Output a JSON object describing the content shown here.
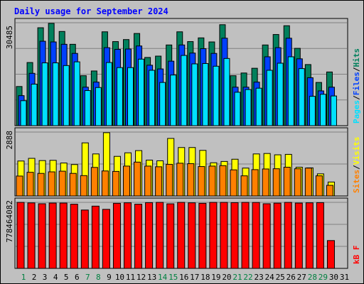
{
  "title": "Daily usage for September 2024",
  "colors": {
    "background": "#c0c0c0",
    "title": "#0000ff",
    "hits": "#00805c",
    "files": "#0040ff",
    "pages": "#00e0ff",
    "visits": "#ffff00",
    "sites": "#ff8000",
    "kbytes": "#ff0000",
    "weekend_label": "#008040",
    "weekday_label": "#000000"
  },
  "chart_data": [
    {
      "type": "bar",
      "title": "",
      "ylabel_max": "30485",
      "legend": [
        {
          "label": "Hits",
          "color_key": "hits"
        },
        {
          "label": "Files",
          "color_key": "files"
        },
        {
          "label": "Pages",
          "color_key": "pages"
        }
      ],
      "separator": "/",
      "categories": [
        "1",
        "2",
        "3",
        "4",
        "5",
        "6",
        "7",
        "8",
        "9",
        "10",
        "11",
        "12",
        "13",
        "14",
        "15",
        "16",
        "17",
        "18",
        "19",
        "20",
        "21",
        "22",
        "23",
        "24",
        "25",
        "26",
        "27",
        "28",
        "29",
        "30",
        "31"
      ],
      "weekend_days": [
        "1",
        "7",
        "8",
        "14",
        "15",
        "21",
        "22",
        "28",
        "29"
      ],
      "ylim": [
        0,
        30485
      ],
      "series": [
        {
          "name": "Hits",
          "values": [
            11600,
            18700,
            29000,
            30300,
            27900,
            24100,
            14800,
            16200,
            27800,
            24900,
            25500,
            27300,
            20200,
            20600,
            23900,
            27800,
            24900,
            26000,
            24800,
            29900,
            14800,
            15600,
            17000,
            23900,
            27000,
            29600,
            22900,
            18100,
            12800,
            15900,
            0
          ]
        },
        {
          "name": "Files",
          "values": [
            8900,
            15500,
            25000,
            24800,
            24100,
            21400,
            11400,
            12900,
            23100,
            22600,
            22700,
            23600,
            17900,
            16800,
            19100,
            23900,
            21500,
            22800,
            21400,
            25900,
            11400,
            11400,
            12900,
            20400,
            23100,
            25900,
            19800,
            14200,
            10300,
            11400,
            0
          ]
        },
        {
          "name": "Pages",
          "values": [
            7400,
            12300,
            18600,
            18600,
            17800,
            18900,
            10400,
            11300,
            18700,
            17200,
            17200,
            19700,
            16400,
            12800,
            15000,
            20800,
            18300,
            18400,
            17600,
            19900,
            9900,
            10700,
            11100,
            16400,
            18500,
            20400,
            16900,
            8700,
            9300,
            8800,
            0
          ]
        }
      ]
    },
    {
      "type": "bar",
      "title": "",
      "ylabel_max": "2888",
      "legend": [
        {
          "label": "Visits",
          "color_key": "visits"
        },
        {
          "label": "Sites",
          "color_key": "sites"
        }
      ],
      "separator": "/",
      "categories": [
        "1",
        "2",
        "3",
        "4",
        "5",
        "6",
        "7",
        "8",
        "9",
        "10",
        "11",
        "12",
        "13",
        "14",
        "15",
        "16",
        "17",
        "18",
        "19",
        "20",
        "21",
        "22",
        "23",
        "24",
        "25",
        "26",
        "27",
        "28",
        "29",
        "30",
        "31"
      ],
      "ylim": [
        0,
        2888
      ],
      "series": [
        {
          "name": "Visits",
          "values": [
            1580,
            1700,
            1600,
            1610,
            1490,
            1420,
            2400,
            1900,
            2860,
            1790,
            1950,
            2050,
            1620,
            1590,
            2600,
            2190,
            2190,
            2060,
            1500,
            1560,
            1660,
            1260,
            1900,
            1920,
            1860,
            1880,
            1300,
            1270,
            1000,
            630,
            0
          ]
        },
        {
          "name": "Sites",
          "values": [
            900,
            1070,
            1020,
            1090,
            1120,
            1020,
            920,
            1290,
            1130,
            1110,
            1350,
            1530,
            1350,
            1320,
            1430,
            1480,
            1460,
            1330,
            1350,
            1370,
            1180,
            910,
            1190,
            1220,
            1230,
            1300,
            1230,
            1260,
            910,
            480,
            0
          ]
        }
      ]
    },
    {
      "type": "bar",
      "title": "",
      "ylabel_max": "778464082",
      "legend": [
        {
          "label": "KBytes",
          "color_key": "kbytes"
        }
      ],
      "legend_text": "kB F",
      "categories": [
        "1",
        "2",
        "3",
        "4",
        "5",
        "6",
        "7",
        "8",
        "9",
        "10",
        "11",
        "12",
        "13",
        "14",
        "15",
        "16",
        "17",
        "18",
        "19",
        "20",
        "21",
        "22",
        "23",
        "24",
        "25",
        "26",
        "27",
        "28",
        "29",
        "30",
        "31"
      ],
      "ylim": [
        0,
        778464082
      ],
      "series": [
        {
          "name": "KBytes",
          "values": [
            778000000,
            772000000,
            762000000,
            770000000,
            770000000,
            757000000,
            688000000,
            734000000,
            696000000,
            767000000,
            773000000,
            757000000,
            775000000,
            778000000,
            761000000,
            778000000,
            773000000,
            767000000,
            778000000,
            778000000,
            775000000,
            778000000,
            777000000,
            762000000,
            769000000,
            778000000,
            770000000,
            773000000,
            775000000,
            328000000,
            0
          ]
        }
      ]
    }
  ]
}
